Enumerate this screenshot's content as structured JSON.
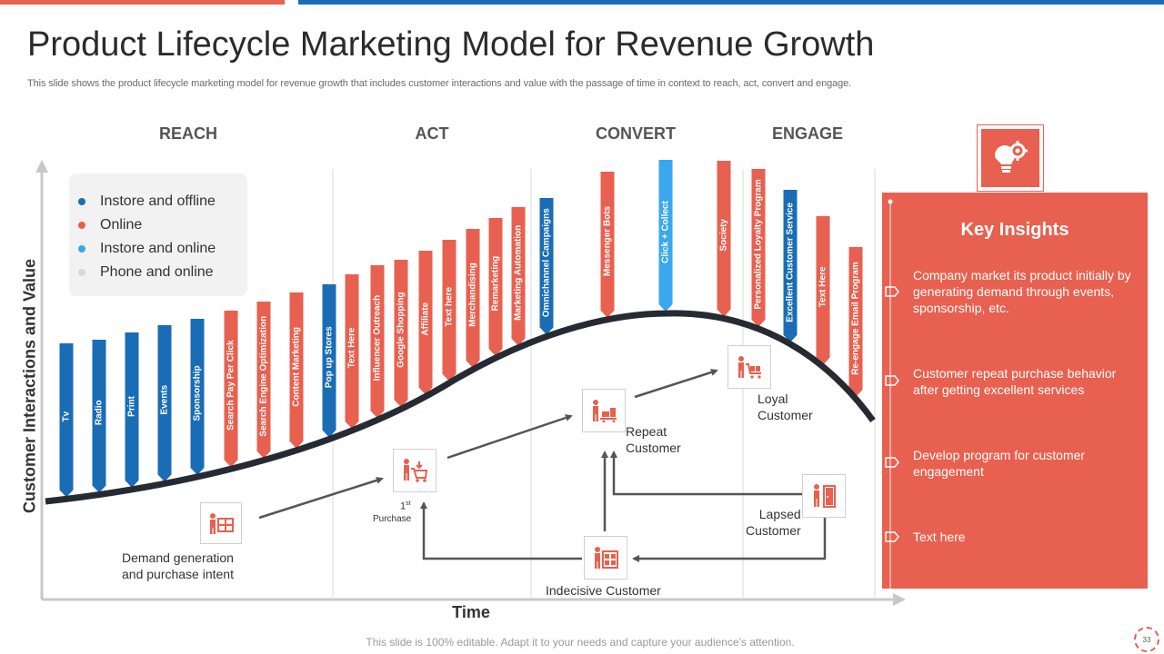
{
  "header": {
    "title": "Product Lifecycle Marketing Model for Revenue Growth",
    "subtitle": "This slide shows the product lifecycle marketing model for revenue growth that includes customer interactions and value with the passage of time in context to reach, act, convert and engage."
  },
  "stages": [
    "REACH",
    "ACT",
    "CONVERT",
    "ENGAGE"
  ],
  "legend": [
    {
      "label": "Instore and offline",
      "color": "#1a6db5"
    },
    {
      "label": "Online",
      "color": "#e8604f"
    },
    {
      "label": "Instore and online",
      "color": "#3aa8ef"
    },
    {
      "label": "Phone and online",
      "color": "#d9d9d9"
    }
  ],
  "axes": {
    "y_label": "Customer Interactions and Value",
    "x_label": "Time"
  },
  "channels": [
    {
      "label": "Tv",
      "type": "Instore and offline"
    },
    {
      "label": "Radio",
      "type": "Instore and offline"
    },
    {
      "label": "Print",
      "type": "Instore and offline"
    },
    {
      "label": "Events",
      "type": "Instore and offline"
    },
    {
      "label": "Sponsorship",
      "type": "Instore and offline"
    },
    {
      "label": "Search Pay Per Click",
      "type": "Online"
    },
    {
      "label": "Search Engine Optimization",
      "type": "Online"
    },
    {
      "label": "Content Marketing",
      "type": "Online"
    },
    {
      "label": "Pop up Stores",
      "type": "Instore and offline"
    },
    {
      "label": "Text Here",
      "type": "Online"
    },
    {
      "label": "Influencer Outreach",
      "type": "Online"
    },
    {
      "label": "Google Shopping",
      "type": "Online"
    },
    {
      "label": "Affiliate",
      "type": "Online"
    },
    {
      "label": "Text here",
      "type": "Online"
    },
    {
      "label": "Merchandising",
      "type": "Online"
    },
    {
      "label": "Remarketing",
      "type": "Online"
    },
    {
      "label": "Marketing Automation",
      "type": "Online"
    },
    {
      "label": "Omnichannel Campaigns",
      "type": "Instore and offline"
    },
    {
      "label": "Messenger Bots",
      "type": "Online"
    },
    {
      "label": "Click + Collect",
      "type": "Instore and online"
    },
    {
      "label": "Society",
      "type": "Online"
    },
    {
      "label": "Personalized Loyalty Program",
      "type": "Online"
    },
    {
      "label": "Excellent Customer Service",
      "type": "Instore and offline"
    },
    {
      "label": "Text Here",
      "type": "Online"
    },
    {
      "label": "Re-engage Email Program",
      "type": "Online"
    }
  ],
  "customers": {
    "demand": "Demand generation\nand purchase intent",
    "first_purchase_num": "1",
    "first_purchase_sup": "st",
    "first_purchase_label": "Purchase",
    "repeat": "Repeat\nCustomer",
    "loyal": "Loyal\nCustomer",
    "lapsed": "Lapsed\nCustomer",
    "indecisive": "Indecisive Customer"
  },
  "insights": {
    "title": "Key Insights",
    "items": [
      "Company market its product initially by generating demand through events, sponsorship, etc.",
      "Customer repeat purchase behavior after getting excellent services",
      "Develop program for customer engagement",
      "Text here"
    ]
  },
  "footer": {
    "note": "This slide is 100% editable. Adapt it to your needs and capture your audience's attention.",
    "page": "33"
  }
}
